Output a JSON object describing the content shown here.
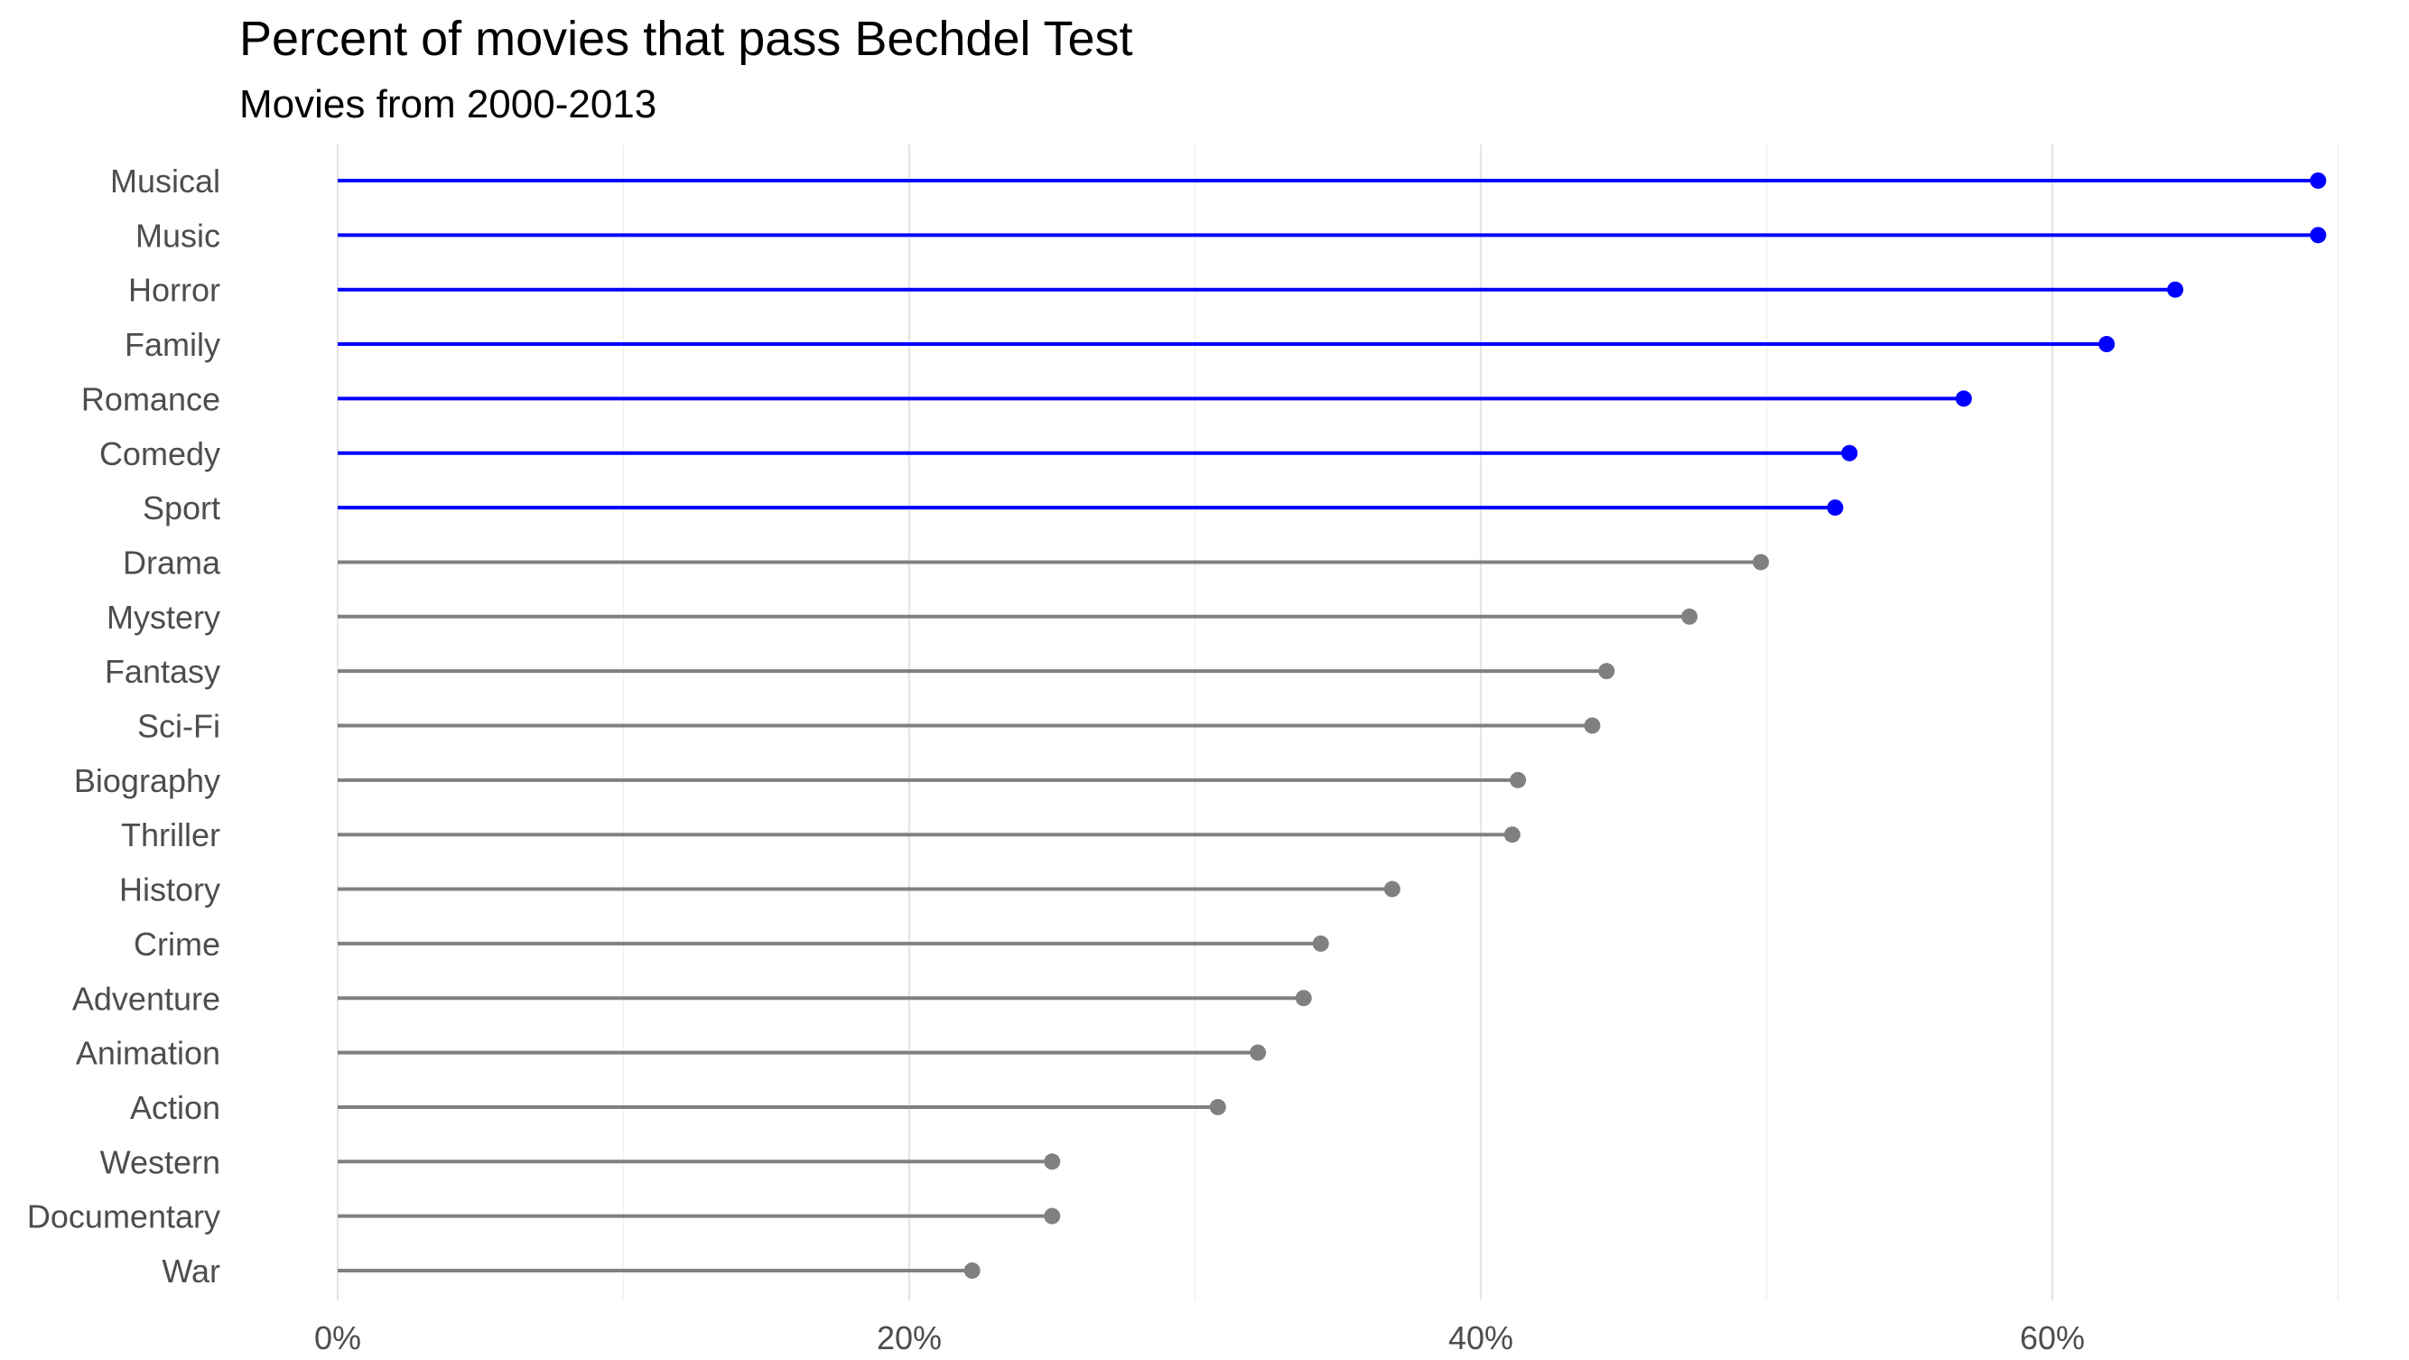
{
  "chart_data": {
    "type": "lollipop",
    "title": "Percent of movies that pass Bechdel Test",
    "subtitle": "Movies from 2000-2013",
    "xlabel": "",
    "ylabel": "",
    "x_ticks": [
      0,
      20,
      40,
      60
    ],
    "x_tick_labels": [
      "0%",
      "20%",
      "40%",
      "60%"
    ],
    "x_minor_ticks": [
      10,
      30,
      50,
      70
    ],
    "xlim": [
      0,
      70
    ],
    "grid": true,
    "legend": "none",
    "colors": {
      "highlight": "#0000ff",
      "default": "#808080"
    },
    "categories": [
      "Musical",
      "Music",
      "Horror",
      "Family",
      "Romance",
      "Comedy",
      "Sport",
      "Drama",
      "Mystery",
      "Fantasy",
      "Sci-Fi",
      "Biography",
      "Thriller",
      "History",
      "Crime",
      "Adventure",
      "Animation",
      "Action",
      "Western",
      "Documentary",
      "War"
    ],
    "values": [
      69.3,
      69.3,
      64.3,
      61.9,
      56.9,
      52.9,
      52.4,
      49.8,
      47.3,
      44.4,
      43.9,
      41.3,
      41.1,
      36.9,
      34.4,
      33.8,
      32.2,
      30.8,
      25.0,
      25.0,
      22.2
    ],
    "highlighted": [
      true,
      true,
      true,
      true,
      true,
      true,
      true,
      false,
      false,
      false,
      false,
      false,
      false,
      false,
      false,
      false,
      false,
      false,
      false,
      false,
      false
    ]
  }
}
